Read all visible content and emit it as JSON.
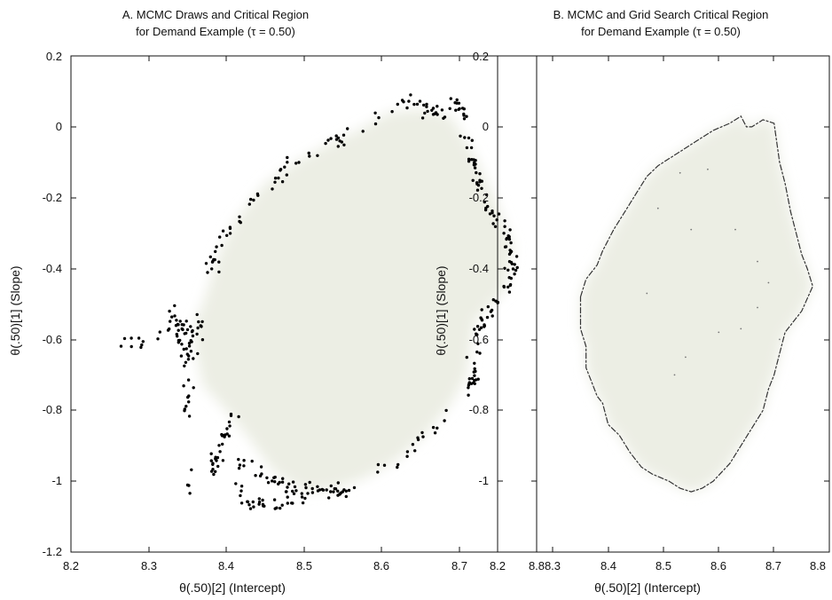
{
  "chart_data": [
    {
      "id": "A",
      "type": "scatter",
      "title_lines": [
        "A.  MCMC Draws and Critical Region",
        "for Demand Example (τ = 0.50)"
      ],
      "xlabel": "θ(.50)[2] (Intercept)",
      "ylabel": "θ(.50)[1] (Slope)",
      "xlim": [
        8.2,
        8.8
      ],
      "ylim": [
        -1.2,
        0.2
      ],
      "xticks": [
        "8.2",
        "8.3",
        "8.4",
        "8.5",
        "8.6",
        "8.7",
        "8.8"
      ],
      "yticks": [
        "-1.2",
        "-1",
        "-0.8",
        "-0.6",
        "-0.4",
        "-0.2",
        "0",
        "0.2"
      ],
      "grid": false,
      "region_fill": "#eceee4",
      "points_color": "#000000",
      "boundary": [
        [
          8.37,
          -0.5
        ],
        [
          8.39,
          -0.36
        ],
        [
          8.41,
          -0.27
        ],
        [
          8.45,
          -0.16
        ],
        [
          8.49,
          -0.1
        ],
        [
          8.53,
          -0.05
        ],
        [
          8.57,
          -0.01
        ],
        [
          8.61,
          0.04
        ],
        [
          8.65,
          0.05
        ],
        [
          8.69,
          0.03
        ],
        [
          8.72,
          -0.08
        ],
        [
          8.75,
          -0.22
        ],
        [
          8.77,
          -0.34
        ],
        [
          8.76,
          -0.46
        ],
        [
          8.72,
          -0.55
        ],
        [
          8.71,
          -0.7
        ],
        [
          8.69,
          -0.78
        ],
        [
          8.66,
          -0.86
        ],
        [
          8.62,
          -0.94
        ],
        [
          8.58,
          -0.99
        ],
        [
          8.54,
          -1.02
        ],
        [
          8.5,
          -1.03
        ],
        [
          8.46,
          -0.97
        ],
        [
          8.43,
          -0.88
        ],
        [
          8.4,
          -0.8
        ],
        [
          8.37,
          -0.73
        ],
        [
          8.36,
          -0.62
        ],
        [
          8.36,
          -0.55
        ]
      ],
      "clusters": [
        {
          "path": [
            [
              8.27,
              -0.62
            ],
            [
              8.33,
              -0.58
            ],
            [
              8.36,
              -0.55
            ],
            [
              8.36,
              -0.62
            ]
          ],
          "n": 40,
          "spread": 0.018
        },
        {
          "path": [
            [
              8.33,
              -0.52
            ],
            [
              8.35,
              -0.62
            ],
            [
              8.35,
              -0.72
            ],
            [
              8.35,
              -0.83
            ]
          ],
          "n": 35,
          "spread": 0.012
        },
        {
          "path": [
            [
              8.38,
              -0.4
            ],
            [
              8.39,
              -0.34
            ],
            [
              8.41,
              -0.28
            ],
            [
              8.44,
              -0.2
            ],
            [
              8.47,
              -0.13
            ],
            [
              8.52,
              -0.06
            ],
            [
              8.56,
              -0.02
            ]
          ],
          "n": 55,
          "spread": 0.012
        },
        {
          "path": [
            [
              8.58,
              0.0
            ],
            [
              8.62,
              0.06
            ],
            [
              8.65,
              0.07
            ],
            [
              8.67,
              0.03
            ],
            [
              8.7,
              0.07
            ],
            [
              8.71,
              0.02
            ]
          ],
          "n": 45,
          "spread": 0.012
        },
        {
          "path": [
            [
              8.71,
              -0.02
            ],
            [
              8.72,
              -0.14
            ],
            [
              8.74,
              -0.22
            ],
            [
              8.76,
              -0.3
            ],
            [
              8.77,
              -0.4
            ],
            [
              8.76,
              -0.47
            ]
          ],
          "n": 75,
          "spread": 0.012
        },
        {
          "path": [
            [
              8.75,
              -0.48
            ],
            [
              8.73,
              -0.55
            ],
            [
              8.72,
              -0.62
            ],
            [
              8.72,
              -0.7
            ],
            [
              8.71,
              -0.75
            ]
          ],
          "n": 45,
          "spread": 0.012
        },
        {
          "path": [
            [
              8.69,
              -0.78
            ],
            [
              8.67,
              -0.84
            ],
            [
              8.64,
              -0.9
            ],
            [
              8.62,
              -0.95
            ],
            [
              8.6,
              -0.97
            ]
          ],
          "n": 18,
          "spread": 0.008
        },
        {
          "path": [
            [
              8.41,
              -0.8
            ],
            [
              8.4,
              -0.86
            ],
            [
              8.39,
              -0.92
            ],
            [
              8.38,
              -0.97
            ]
          ],
          "n": 30,
          "spread": 0.012
        },
        {
          "path": [
            [
              8.4,
              -0.93
            ],
            [
              8.44,
              -0.97
            ],
            [
              8.48,
              -1.02
            ],
            [
              8.52,
              -1.03
            ],
            [
              8.56,
              -1.03
            ]
          ],
          "n": 60,
          "spread": 0.013
        },
        {
          "path": [
            [
              8.41,
              -1.0
            ],
            [
              8.43,
              -1.06
            ],
            [
              8.46,
              -1.07
            ],
            [
              8.5,
              -1.05
            ]
          ],
          "n": 30,
          "spread": 0.012
        },
        {
          "path": [
            [
              8.35,
              -1.03
            ],
            [
              8.36,
              -0.96
            ]
          ],
          "n": 4,
          "spread": 0.006
        }
      ]
    },
    {
      "id": "B",
      "type": "line",
      "title_lines": [
        "B.  MCMC and Grid Search Critical Region",
        "for Demand Example (τ = 0.50)"
      ],
      "xlabel": "θ(.50)[2] (Intercept)",
      "ylabel": "θ(.50)[1] (Slope)",
      "xlim": [
        8.2,
        8.8
      ],
      "ylim": [
        -1.2,
        0.2
      ],
      "xticks": [
        "8.2",
        "8.3",
        "8.4",
        "8.5",
        "8.6",
        "8.7",
        "8.8"
      ],
      "yticks": [
        "-1",
        "-0.8",
        "-0.6",
        "-0.4",
        "-0.2",
        "0",
        "0.2"
      ],
      "grid": false,
      "region_fill": "#eceee4",
      "line_color": "#333333",
      "boundary": [
        [
          8.35,
          -0.48
        ],
        [
          8.36,
          -0.43
        ],
        [
          8.38,
          -0.39
        ],
        [
          8.39,
          -0.35
        ],
        [
          8.41,
          -0.29
        ],
        [
          8.43,
          -0.24
        ],
        [
          8.45,
          -0.19
        ],
        [
          8.47,
          -0.14
        ],
        [
          8.49,
          -0.11
        ],
        [
          8.51,
          -0.09
        ],
        [
          8.53,
          -0.07
        ],
        [
          8.56,
          -0.04
        ],
        [
          8.59,
          -0.01
        ],
        [
          8.62,
          0.01
        ],
        [
          8.64,
          0.03
        ],
        [
          8.65,
          0.0
        ],
        [
          8.66,
          0.0
        ],
        [
          8.68,
          0.02
        ],
        [
          8.7,
          0.01
        ],
        [
          8.71,
          -0.1
        ],
        [
          8.72,
          -0.16
        ],
        [
          8.73,
          -0.24
        ],
        [
          8.74,
          -0.3
        ],
        [
          8.75,
          -0.36
        ],
        [
          8.76,
          -0.4
        ],
        [
          8.77,
          -0.45
        ],
        [
          8.75,
          -0.52
        ],
        [
          8.72,
          -0.58
        ],
        [
          8.71,
          -0.64
        ],
        [
          8.7,
          -0.7
        ],
        [
          8.69,
          -0.74
        ],
        [
          8.68,
          -0.8
        ],
        [
          8.66,
          -0.85
        ],
        [
          8.64,
          -0.9
        ],
        [
          8.62,
          -0.95
        ],
        [
          8.59,
          -1.0
        ],
        [
          8.57,
          -1.02
        ],
        [
          8.55,
          -1.03
        ],
        [
          8.53,
          -1.02
        ],
        [
          8.51,
          -1.0
        ],
        [
          8.48,
          -0.98
        ],
        [
          8.46,
          -0.96
        ],
        [
          8.44,
          -0.92
        ],
        [
          8.42,
          -0.87
        ],
        [
          8.4,
          -0.84
        ],
        [
          8.39,
          -0.78
        ],
        [
          8.38,
          -0.76
        ],
        [
          8.37,
          -0.72
        ],
        [
          8.36,
          -0.68
        ],
        [
          8.36,
          -0.62
        ],
        [
          8.35,
          -0.57
        ],
        [
          8.35,
          -0.52
        ],
        [
          8.35,
          -0.48
        ]
      ],
      "stray_points": [
        [
          8.58,
          -0.12
        ],
        [
          8.53,
          -0.13
        ],
        [
          8.49,
          -0.23
        ],
        [
          8.55,
          -0.29
        ],
        [
          8.63,
          -0.29
        ],
        [
          8.67,
          -0.38
        ],
        [
          8.69,
          -0.44
        ],
        [
          8.67,
          -0.51
        ],
        [
          8.6,
          -0.58
        ],
        [
          8.54,
          -0.65
        ],
        [
          8.52,
          -0.7
        ],
        [
          8.64,
          -0.57
        ],
        [
          8.47,
          -0.47
        ],
        [
          8.71,
          -0.6
        ]
      ]
    }
  ]
}
